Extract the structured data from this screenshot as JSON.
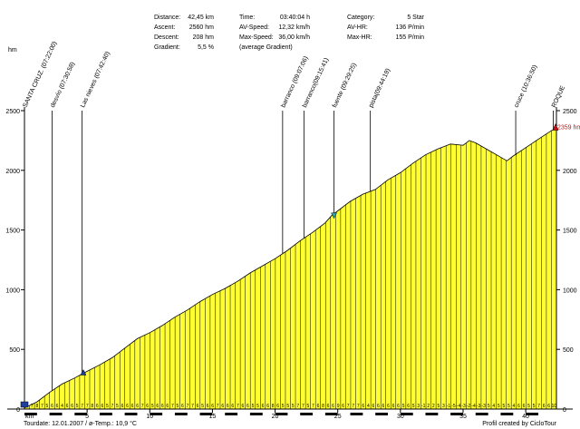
{
  "stats": {
    "col1": [
      {
        "label": "Distance:",
        "value": "42,45 km"
      },
      {
        "label": "Ascent:",
        "value": "2560 hm"
      },
      {
        "label": "Descent:",
        "value": "208 hm"
      },
      {
        "label": "Gradient:",
        "value": "5,5 %"
      }
    ],
    "col2": [
      {
        "label": "Time:",
        "value": "03:40:04 h"
      },
      {
        "label": "AV-Speed:",
        "value": "12,32 km/h"
      },
      {
        "label": "Max-Speed:",
        "value": "36,00 km/h"
      },
      {
        "label": "(average Gradient)",
        "value": ""
      }
    ],
    "col3": [
      {
        "label": "Category:",
        "value": "5 Star"
      },
      {
        "label": "AV-HR:",
        "value": "136 P/min"
      },
      {
        "label": "Max-HR:",
        "value": "155 P/min"
      }
    ]
  },
  "footer": {
    "tour_date": "Tourdate: 12.01.2007  /  ø-Temp.: 10,9 °C",
    "credit": "Profil created by CicloTour"
  },
  "colors": {
    "fill": "#ffff33",
    "grid": "#000000",
    "start_marker": "#1f3fa0",
    "water_marker": "#2aa8a8",
    "end_marker": "#cc1111"
  },
  "chart_data": {
    "type": "area",
    "title": "",
    "xlabel": "km",
    "ylabel": "hm",
    "xlim": [
      0,
      42.45
    ],
    "ylim": [
      0,
      2500
    ],
    "x_ticks": [
      5,
      10,
      15,
      20,
      25,
      30,
      35,
      40
    ],
    "y_ticks": [
      0,
      500,
      1000,
      1500,
      2000,
      2500
    ],
    "profile": {
      "x": [
        0,
        1,
        2,
        3,
        4,
        4.7,
        6,
        7,
        8,
        9,
        10,
        11,
        12,
        13,
        14,
        15,
        16,
        17,
        18,
        19,
        20,
        21,
        22,
        23,
        24,
        24.5,
        25,
        26,
        27,
        28,
        29,
        30,
        31,
        32,
        33,
        34,
        35,
        35.5,
        36,
        37,
        38,
        38.5,
        39,
        40,
        41,
        42,
        42.45
      ],
      "y": [
        10,
        60,
        140,
        210,
        260,
        300,
        370,
        430,
        510,
        590,
        640,
        700,
        770,
        830,
        900,
        960,
        1010,
        1070,
        1140,
        1200,
        1260,
        1330,
        1410,
        1480,
        1560,
        1620,
        1660,
        1740,
        1800,
        1840,
        1920,
        1980,
        2060,
        2130,
        2180,
        2220,
        2210,
        2250,
        2230,
        2170,
        2110,
        2080,
        2120,
        2190,
        2260,
        2330,
        2359
      ]
    },
    "waypoints": [
      {
        "km": 0.0,
        "label": "SANTA CRUZ. (07:22:00)"
      },
      {
        "km": 2.2,
        "label": "desvío (07:30:58)"
      },
      {
        "km": 4.6,
        "label": "Las nieves (07:42:40)"
      },
      {
        "km": 20.6,
        "label": "barranco (09:07:06)"
      },
      {
        "km": 22.3,
        "label": "barranco(09:15:41)"
      },
      {
        "km": 24.7,
        "label": "fuente (09:29:25)"
      },
      {
        "km": 27.6,
        "label": "pista(09:44:19)"
      },
      {
        "km": 39.2,
        "label": "cruce (10:36:50)"
      },
      {
        "km": 42.2,
        "label": "ROQUE"
      }
    ],
    "end_label": "2359 hm",
    "gradient_labels": [
      "3",
      "7",
      "8",
      "7",
      "5",
      "6",
      "6",
      "4",
      "6",
      "6",
      "5",
      "7",
      "7",
      "8",
      "6",
      "6",
      "5",
      "7",
      "5",
      "6",
      "6",
      "6",
      "6",
      "7",
      "6",
      "5",
      "6",
      "6",
      "6",
      "7",
      "5",
      "6",
      "7",
      "7",
      "6",
      "5",
      "6",
      "6",
      "7",
      "6",
      "6",
      "6",
      "7",
      "6",
      "6",
      "5",
      "5",
      "6",
      "6",
      "8",
      "6",
      "5",
      "5",
      "5",
      "7",
      "7",
      "5",
      "7",
      "6",
      "8",
      "6",
      "6",
      "9",
      "6",
      "7",
      "7",
      "7",
      "6",
      "4",
      "6",
      "6",
      "6",
      "6",
      "6",
      "6",
      "5",
      "6",
      "5",
      "3",
      "-1",
      "2",
      "2",
      "5",
      "3",
      "-1",
      "-5",
      "-4",
      "-3",
      "-2",
      "-4",
      "-3",
      "-3",
      "5",
      "4",
      "5",
      "5",
      "5",
      "4",
      "6",
      "6",
      "5",
      "5",
      "7",
      "6",
      "6",
      "10"
    ]
  }
}
